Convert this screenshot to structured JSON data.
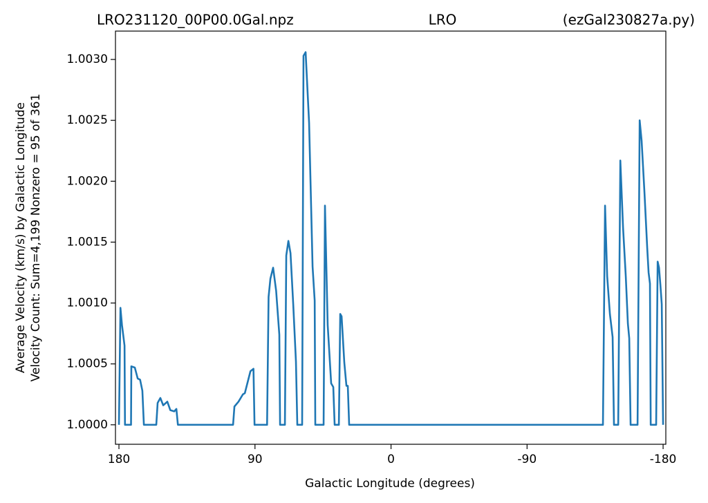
{
  "chart_data": {
    "type": "line",
    "title_left": "LRO231120_00P00.0Gal.npz",
    "title": "LRO",
    "title_right": "(ezGal230827a.py)",
    "xlabel": "Galactic Longitude (degrees)",
    "ylabel": [
      "Average Velocity (km/s) by Galactic Longitude",
      "Velocity Count: Sum=4,199 Nonzero = 95 of 361"
    ],
    "xlim": [
      182.3,
      -181.8
    ],
    "ylim": [
      0.99984,
      1.003233
    ],
    "xticks": [
      180,
      90,
      0,
      -90,
      -180
    ],
    "yticks": [
      {
        "value": 1.0,
        "label": "1.0000"
      },
      {
        "value": 1.0005,
        "label": "1.0005"
      },
      {
        "value": 1.001,
        "label": "1.0010"
      },
      {
        "value": 1.0015,
        "label": "1.0015"
      },
      {
        "value": 1.002,
        "label": "1.0020"
      },
      {
        "value": 1.0025,
        "label": "1.0025"
      },
      {
        "value": 1.003,
        "label": "1.0030"
      }
    ],
    "grid": false,
    "series": [
      {
        "color": "#1f77b4",
        "x": [
          180,
          179,
          178,
          176.3,
          176,
          172,
          171.8,
          169.5,
          167.6,
          166,
          164.5,
          163.5,
          155.3,
          154.4,
          152.6,
          150.7,
          148,
          146,
          143.4,
          142,
          141,
          104.5,
          103.6,
          100.9,
          98,
          96.7,
          93,
          91,
          90.3,
          82,
          81,
          79.8,
          78,
          76,
          73.9,
          73.4,
          70.2,
          69.3,
          67.9,
          66.5,
          64.7,
          62.9,
          62,
          58.8,
          57.9,
          56.5,
          54.2,
          51.9,
          50.5,
          50.1,
          44.6,
          43.7,
          41.9,
          39.6,
          38.2,
          37.3,
          34.5,
          33.6,
          32.7,
          30.9,
          29.5,
          28.6,
          27.7,
          -140.2,
          -141.6,
          -143,
          -144.8,
          -146.6,
          -147.5,
          -150.3,
          -151.7,
          -153.5,
          -155.3,
          -156.7,
          -157.6,
          -158.5,
          -163.1,
          -164.5,
          -165.8,
          -167.7,
          -169.5,
          -170.4,
          -171.3,
          -171.8,
          -175.4,
          -176.4,
          -177.3,
          -178.2,
          -179.1,
          -180
        ],
        "values": [
          1.0,
          1.00096,
          1.00082,
          1.00065,
          1.0,
          1.0,
          1.00048,
          1.00047,
          1.00038,
          1.00037,
          1.00028,
          1.0,
          1.0,
          1.00018,
          1.00022,
          1.00016,
          1.00019,
          1.00012,
          1.00011,
          1.00013,
          1.0,
          1.0,
          1.00015,
          1.00019,
          1.00025,
          1.00026,
          1.00044,
          1.00046,
          1.0,
          1.0,
          1.00105,
          1.0012,
          1.00129,
          1.0011,
          1.00074,
          1.0,
          1.0,
          1.00139,
          1.00151,
          1.00141,
          1.00099,
          1.00052,
          1.0,
          1.0,
          1.00303,
          1.00306,
          1.00248,
          1.0013,
          1.00102,
          1.0,
          1.0,
          1.0018,
          1.00082,
          1.00034,
          1.00031,
          1.0,
          1.0,
          1.00091,
          1.00089,
          1.00051,
          1.00032,
          1.00032,
          1.0,
          1.0,
          1.0018,
          1.00122,
          1.00091,
          1.00072,
          1.0,
          1.0,
          1.00217,
          1.00162,
          1.00122,
          1.00083,
          1.00071,
          1.0,
          1.0,
          1.0025,
          1.00233,
          1.0019,
          1.00145,
          1.00125,
          1.00116,
          1.0,
          1.0,
          1.00134,
          1.00129,
          1.00115,
          1.00099,
          1.0
        ]
      }
    ]
  }
}
